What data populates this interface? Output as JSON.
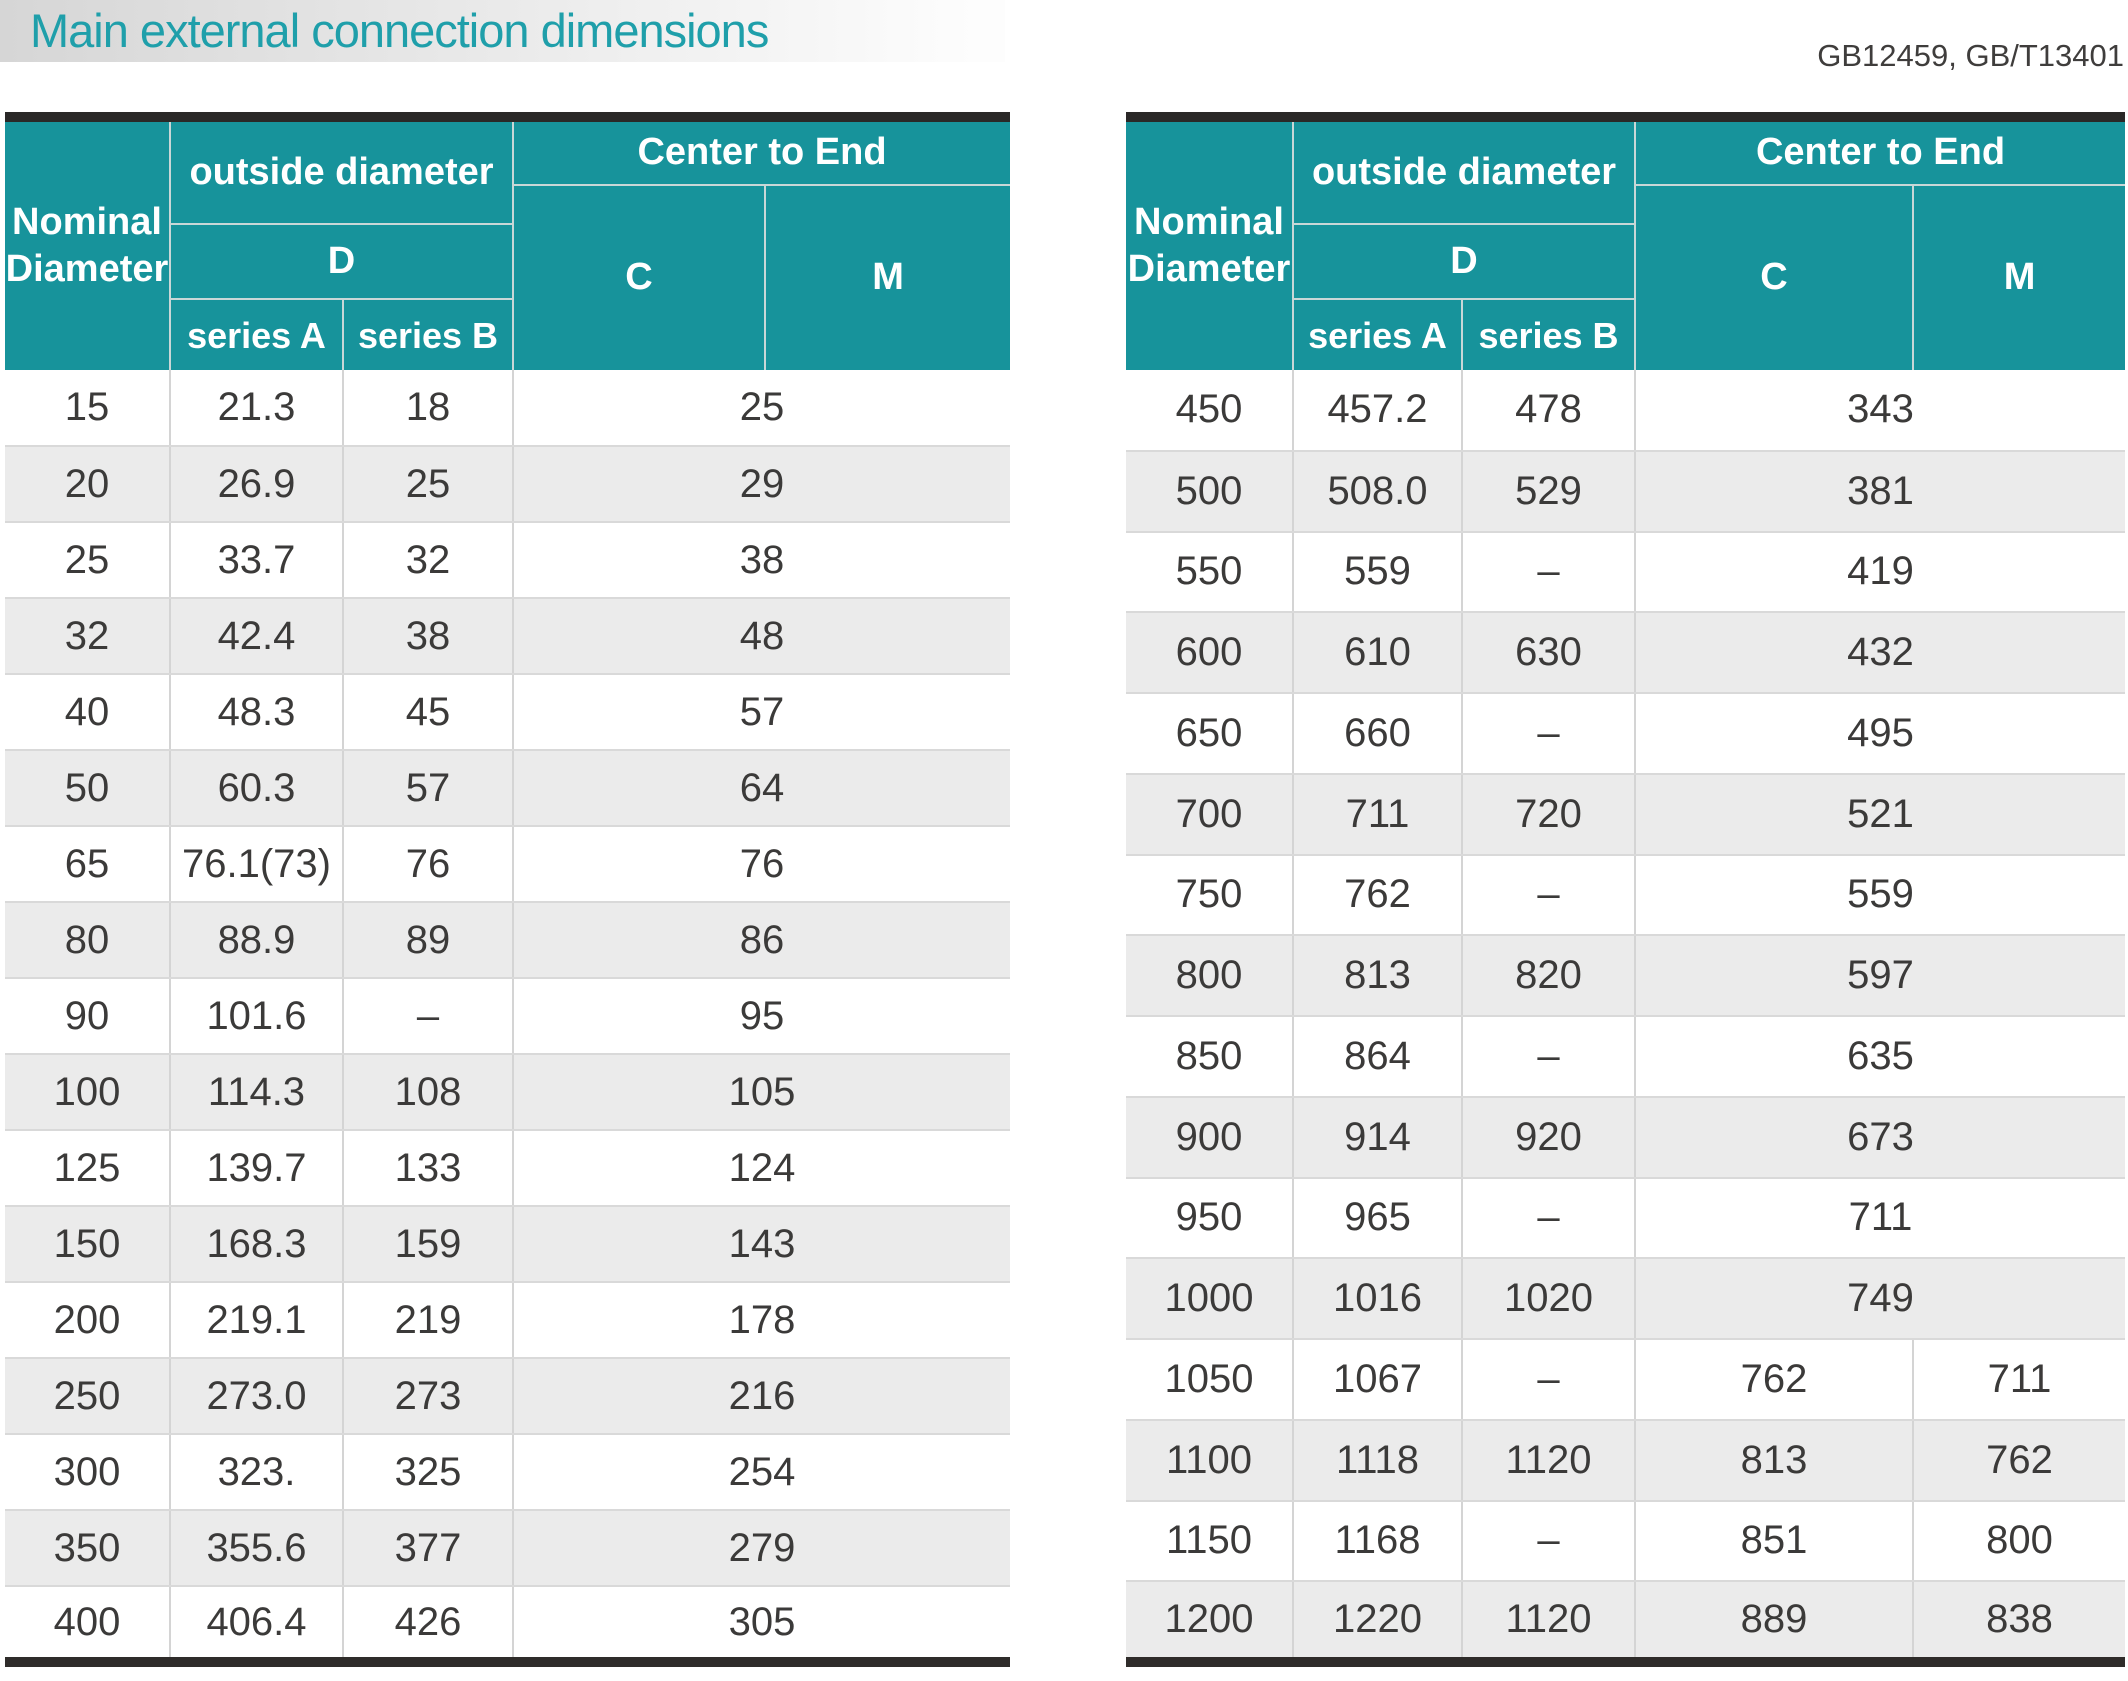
{
  "page": {
    "title": "Main external connection dimensions",
    "standards": "GB12459, GB/T13401"
  },
  "table_header": {
    "nominal_diameter": "Nominal Diameter",
    "outside_diameter": "outside diameter",
    "d": "D",
    "series_a": "series A",
    "series_b": "series B",
    "center_to_end": "Center to End",
    "c": "C",
    "m": "M"
  },
  "left_table": {
    "rows": [
      {
        "nd": "15",
        "a": "21.3",
        "b": "18",
        "cm": "25"
      },
      {
        "nd": "20",
        "a": "26.9",
        "b": "25",
        "cm": "29"
      },
      {
        "nd": "25",
        "a": "33.7",
        "b": "32",
        "cm": "38"
      },
      {
        "nd": "32",
        "a": "42.4",
        "b": "38",
        "cm": "48"
      },
      {
        "nd": "40",
        "a": "48.3",
        "b": "45",
        "cm": "57"
      },
      {
        "nd": "50",
        "a": "60.3",
        "b": "57",
        "cm": "64"
      },
      {
        "nd": "65",
        "a": "76.1(73)",
        "b": "76",
        "cm": "76"
      },
      {
        "nd": "80",
        "a": "88.9",
        "b": "89",
        "cm": "86"
      },
      {
        "nd": "90",
        "a": "101.6",
        "b": "–",
        "cm": "95"
      },
      {
        "nd": "100",
        "a": "114.3",
        "b": "108",
        "cm": "105"
      },
      {
        "nd": "125",
        "a": "139.7",
        "b": "133",
        "cm": "124"
      },
      {
        "nd": "150",
        "a": "168.3",
        "b": "159",
        "cm": "143"
      },
      {
        "nd": "200",
        "a": "219.1",
        "b": "219",
        "cm": "178"
      },
      {
        "nd": "250",
        "a": "273.0",
        "b": "273",
        "cm": "216"
      },
      {
        "nd": "300",
        "a": "323.",
        "b": "325",
        "cm": "254"
      },
      {
        "nd": "350",
        "a": "355.6",
        "b": "377",
        "cm": "279"
      },
      {
        "nd": "400",
        "a": "406.4",
        "b": "426",
        "cm": "305"
      }
    ]
  },
  "right_table": {
    "rows": [
      {
        "nd": "450",
        "a": "457.2",
        "b": "478",
        "cm": "343"
      },
      {
        "nd": "500",
        "a": "508.0",
        "b": "529",
        "cm": "381"
      },
      {
        "nd": "550",
        "a": "559",
        "b": "–",
        "cm": "419"
      },
      {
        "nd": "600",
        "a": "610",
        "b": "630",
        "cm": "432"
      },
      {
        "nd": "650",
        "a": "660",
        "b": "–",
        "cm": "495"
      },
      {
        "nd": "700",
        "a": "711",
        "b": "720",
        "cm": "521"
      },
      {
        "nd": "750",
        "a": "762",
        "b": "–",
        "cm": "559"
      },
      {
        "nd": "800",
        "a": "813",
        "b": "820",
        "cm": "597"
      },
      {
        "nd": "850",
        "a": "864",
        "b": "–",
        "cm": "635"
      },
      {
        "nd": "900",
        "a": "914",
        "b": "920",
        "cm": "673"
      },
      {
        "nd": "950",
        "a": "965",
        "b": "–",
        "cm": "711"
      },
      {
        "nd": "1000",
        "a": "1016",
        "b": "1020",
        "cm": "749"
      },
      {
        "nd": "1050",
        "a": "1067",
        "b": "–",
        "c": "762",
        "m": "711"
      },
      {
        "nd": "1100",
        "a": "1118",
        "b": "1120",
        "c": "813",
        "m": "762"
      },
      {
        "nd": "1150",
        "a": "1168",
        "b": "–",
        "c": "851",
        "m": "800"
      },
      {
        "nd": "1200",
        "a": "1220",
        "b": "1120",
        "c": "889",
        "m": "838"
      }
    ]
  },
  "colors": {
    "header_teal": "#17939b",
    "title_teal": "#1f9faa",
    "row_alt_gray": "#ebebeb",
    "data_text": "#3b3a39",
    "dark_border": "#2a2827",
    "grid_line": "#d4d4d4"
  }
}
